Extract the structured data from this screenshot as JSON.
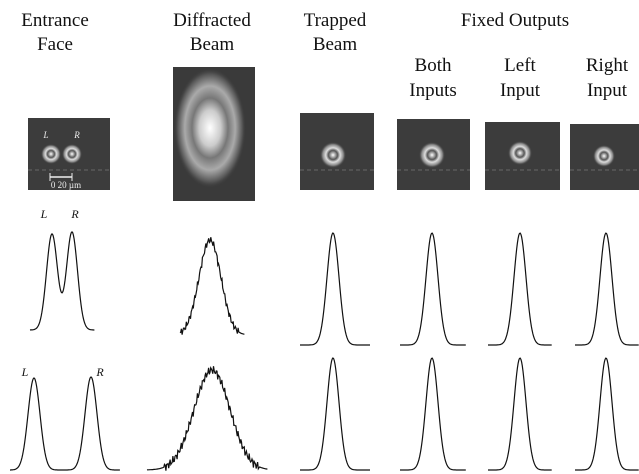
{
  "columns": [
    {
      "lines": [
        "Entrance",
        "Face"
      ]
    },
    {
      "lines": [
        "Diffracted",
        "Beam"
      ]
    },
    {
      "lines": [
        "Trapped",
        "Beam"
      ]
    },
    {
      "lines": [
        "Both",
        "Inputs"
      ]
    },
    {
      "lines": [
        "Left",
        "Input"
      ]
    },
    {
      "lines": [
        "Right",
        "Input"
      ]
    }
  ],
  "group_title": "Fixed Outputs",
  "labels": {
    "left": "L",
    "right": "R",
    "scale": "0  20 µm"
  }
}
